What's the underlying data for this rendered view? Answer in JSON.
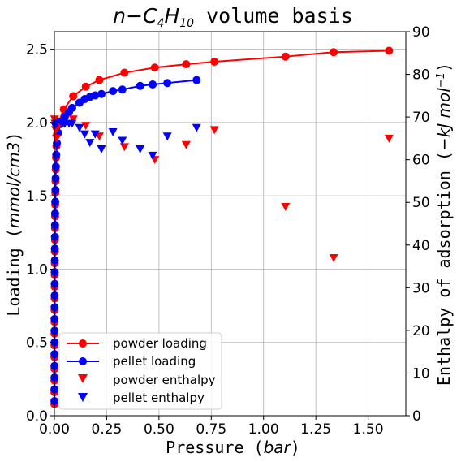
{
  "chart_data": {
    "type": "line",
    "title_parts": {
      "a": "n",
      "b": "−",
      "c": "C",
      "d": "4",
      "e": "H",
      "f": "10",
      "g": " volume basis"
    },
    "xlabel_parts": {
      "a": "Pressure (",
      "b": "bar",
      "c": ")"
    },
    "ylabel_parts": {
      "a": "Loading (",
      "b": "mmol/cm3",
      "c": ")"
    },
    "y2label_parts": {
      "a": "Enthalpy of adsorption (",
      "b": "−kJ mol",
      "c": "−1",
      "d": ")"
    },
    "xlim": [
      0,
      1.68
    ],
    "ylim": [
      0,
      2.62
    ],
    "y2lim": [
      0,
      90
    ],
    "xticks": [
      "0.00",
      "0.25",
      "0.50",
      "0.75",
      "1.00",
      "1.25",
      "1.50"
    ],
    "xtick_values": [
      0,
      0.25,
      0.5,
      0.75,
      1.0,
      1.25,
      1.5
    ],
    "yticks": [
      "0.0",
      "0.5",
      "1.0",
      "1.5",
      "2.0",
      "2.5"
    ],
    "ytick_values": [
      0,
      0.5,
      1.0,
      1.5,
      2.0,
      2.5
    ],
    "y2ticks": [
      "0",
      "10",
      "20",
      "30",
      "40",
      "50",
      "60",
      "70",
      "80",
      "90"
    ],
    "y2tick_values": [
      0,
      10,
      20,
      30,
      40,
      50,
      60,
      70,
      80,
      90
    ],
    "grid": true,
    "legend_position": "lower-left",
    "series": [
      {
        "name": "powder loading",
        "kind": "line-marker",
        "axis": "left",
        "color": "#ff0000",
        "points": [
          [
            0.0002,
            0.08
          ],
          [
            0.0003,
            0.16
          ],
          [
            0.0004,
            0.24
          ],
          [
            0.0005,
            0.32
          ],
          [
            0.0006,
            0.4
          ],
          [
            0.0007,
            0.48
          ],
          [
            0.0008,
            0.56
          ],
          [
            0.001,
            0.64
          ],
          [
            0.0012,
            0.72
          ],
          [
            0.0014,
            0.8
          ],
          [
            0.0016,
            0.88
          ],
          [
            0.0018,
            0.96
          ],
          [
            0.002,
            1.04
          ],
          [
            0.0023,
            1.12
          ],
          [
            0.0026,
            1.2
          ],
          [
            0.003,
            1.28
          ],
          [
            0.0034,
            1.36
          ],
          [
            0.004,
            1.44
          ],
          [
            0.0047,
            1.52
          ],
          [
            0.0055,
            1.6
          ],
          [
            0.0065,
            1.68
          ],
          [
            0.008,
            1.76
          ],
          [
            0.01,
            1.84
          ],
          [
            0.013,
            1.92
          ],
          [
            0.02,
            2.0
          ],
          [
            0.045,
            2.09
          ],
          [
            0.09,
            2.18
          ],
          [
            0.15,
            2.245
          ],
          [
            0.215,
            2.29
          ],
          [
            0.335,
            2.34
          ],
          [
            0.48,
            2.375
          ],
          [
            0.63,
            2.398
          ],
          [
            0.765,
            2.415
          ],
          [
            1.105,
            2.45
          ],
          [
            1.335,
            2.48
          ],
          [
            1.6,
            2.49
          ]
        ]
      },
      {
        "name": "pellet loading",
        "kind": "line-marker",
        "axis": "left",
        "color": "#0000ff",
        "points": [
          [
            0.0003,
            0.1
          ],
          [
            0.0004,
            0.18
          ],
          [
            0.0005,
            0.26
          ],
          [
            0.0006,
            0.34
          ],
          [
            0.0007,
            0.42
          ],
          [
            0.0008,
            0.5
          ],
          [
            0.0009,
            0.58
          ],
          [
            0.001,
            0.66
          ],
          [
            0.0012,
            0.74
          ],
          [
            0.0014,
            0.82
          ],
          [
            0.0016,
            0.9
          ],
          [
            0.0018,
            0.98
          ],
          [
            0.002,
            1.06
          ],
          [
            0.0023,
            1.14
          ],
          [
            0.0027,
            1.22
          ],
          [
            0.0031,
            1.3
          ],
          [
            0.0036,
            1.38
          ],
          [
            0.0042,
            1.46
          ],
          [
            0.005,
            1.54
          ],
          [
            0.006,
            1.62
          ],
          [
            0.0072,
            1.7
          ],
          [
            0.009,
            1.78
          ],
          [
            0.012,
            1.86
          ],
          [
            0.018,
            1.93
          ],
          [
            0.03,
            1.99
          ],
          [
            0.05,
            2.04
          ],
          [
            0.07,
            2.07
          ],
          [
            0.085,
            2.1
          ],
          [
            0.12,
            2.135
          ],
          [
            0.145,
            2.16
          ],
          [
            0.17,
            2.175
          ],
          [
            0.195,
            2.185
          ],
          [
            0.225,
            2.195
          ],
          [
            0.28,
            2.215
          ],
          [
            0.325,
            2.225
          ],
          [
            0.41,
            2.25
          ],
          [
            0.47,
            2.26
          ],
          [
            0.54,
            2.27
          ],
          [
            0.68,
            2.29
          ]
        ]
      },
      {
        "name": "powder enthalpy",
        "kind": "scatter-triangle",
        "axis": "right",
        "color": "#ff0000",
        "points": [
          [
            0.001,
            69.5
          ],
          [
            0.003,
            68.5
          ],
          [
            0.006,
            67.0
          ],
          [
            0.01,
            65.0
          ],
          [
            0.02,
            68.0
          ],
          [
            0.05,
            68.5
          ],
          [
            0.09,
            69.5
          ],
          [
            0.15,
            68.0
          ],
          [
            0.215,
            65.5
          ],
          [
            0.335,
            63.0
          ],
          [
            0.48,
            60.0
          ],
          [
            0.63,
            63.5
          ],
          [
            0.765,
            67.0
          ],
          [
            1.105,
            49.0
          ],
          [
            1.335,
            37.0
          ],
          [
            1.6,
            65.0
          ]
        ]
      },
      {
        "name": "pellet enthalpy",
        "kind": "scatter-triangle",
        "axis": "right",
        "color": "#0000ff",
        "points": [
          [
            0.002,
            68.0
          ],
          [
            0.01,
            68.5
          ],
          [
            0.03,
            69.0
          ],
          [
            0.05,
            68.5
          ],
          [
            0.07,
            68.5
          ],
          [
            0.085,
            68.5
          ],
          [
            0.12,
            67.5
          ],
          [
            0.145,
            66.0
          ],
          [
            0.17,
            64.0
          ],
          [
            0.195,
            66.0
          ],
          [
            0.225,
            62.5
          ],
          [
            0.28,
            66.5
          ],
          [
            0.325,
            64.5
          ],
          [
            0.41,
            62.5
          ],
          [
            0.47,
            61.0
          ],
          [
            0.54,
            65.5
          ],
          [
            0.68,
            67.5
          ]
        ]
      }
    ]
  }
}
